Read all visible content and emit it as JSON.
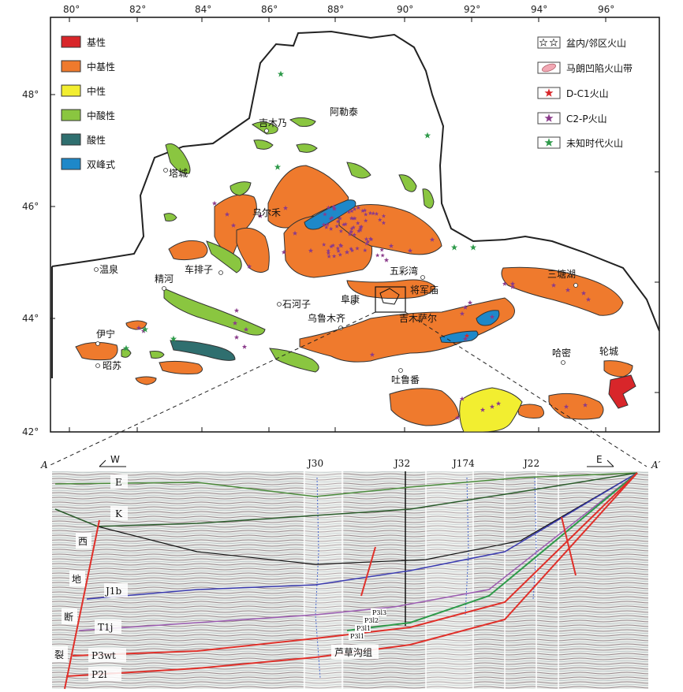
{
  "map": {
    "lon_ticks": [
      "80°",
      "82°",
      "84°",
      "86°",
      "88°",
      "90°",
      "92°",
      "94°",
      "96°"
    ],
    "lat_ticks": [
      "48°",
      "46°",
      "44°",
      "42°"
    ],
    "legend_left": [
      {
        "label": "基性",
        "color": "#d8262a"
      },
      {
        "label": "中基性",
        "color": "#ef7a2d"
      },
      {
        "label": "中性",
        "color": "#f2ee30"
      },
      {
        "label": "中酸性",
        "color": "#8ac640"
      },
      {
        "label": "酸性",
        "color": "#2f6f6f"
      },
      {
        "label": "双峰式",
        "color": "#1e88c9"
      }
    ],
    "legend_right": [
      {
        "label": "盆内/邻区火山",
        "icon": "hollow-star-icon"
      },
      {
        "label": "马朗凹陷火山带",
        "icon": "pink-ellipse-icon"
      },
      {
        "label": "D-C1火山",
        "icon": "red-star-icon",
        "color": "#d8262a"
      },
      {
        "label": "C2-P火山",
        "icon": "purple-star-icon",
        "color": "#8a3a8a"
      },
      {
        "label": "未知时代火山",
        "icon": "green-star-icon",
        "color": "#2e9a4a"
      }
    ],
    "places": {
      "jimunai": "吉木乃",
      "aletai": "阿勒泰",
      "tacheng": "塔城",
      "wuerhe": "乌尔禾",
      "wenquan": "温泉",
      "jinghe": "精河",
      "chepaizi": "车排子",
      "wucaiwan": "五彩湾",
      "jiangjunmiao": "将军庙",
      "shihezi": "石河子",
      "fukang": "阜康",
      "urumqi": "乌鲁木齐",
      "jimusar": "吉木萨尔",
      "santanghu": "三塘湖",
      "yining": "伊宁",
      "zhaosu": "昭苏",
      "hami": "哈密",
      "lunhcheng": "轮城",
      "turpan": "吐鲁番"
    }
  },
  "section": {
    "endpoint_left": "A",
    "endpoint_right": "A′",
    "dir_west": "W",
    "dir_east": "E",
    "wells": [
      "J30",
      "J32",
      "J174",
      "J22"
    ],
    "horizon_E": "E",
    "horizon_K": "K",
    "horizon_J1b": "J1b",
    "horizon_T1j": "T1j",
    "horizon_P3wt": "P3wt",
    "horizon_P2l": "P2l",
    "fault_chars": [
      "西",
      "地",
      "断",
      "裂"
    ],
    "small_labels": [
      "P3l3",
      "P3l2",
      "P3l1",
      "P3l1"
    ],
    "group_label": "芦草沟组"
  }
}
